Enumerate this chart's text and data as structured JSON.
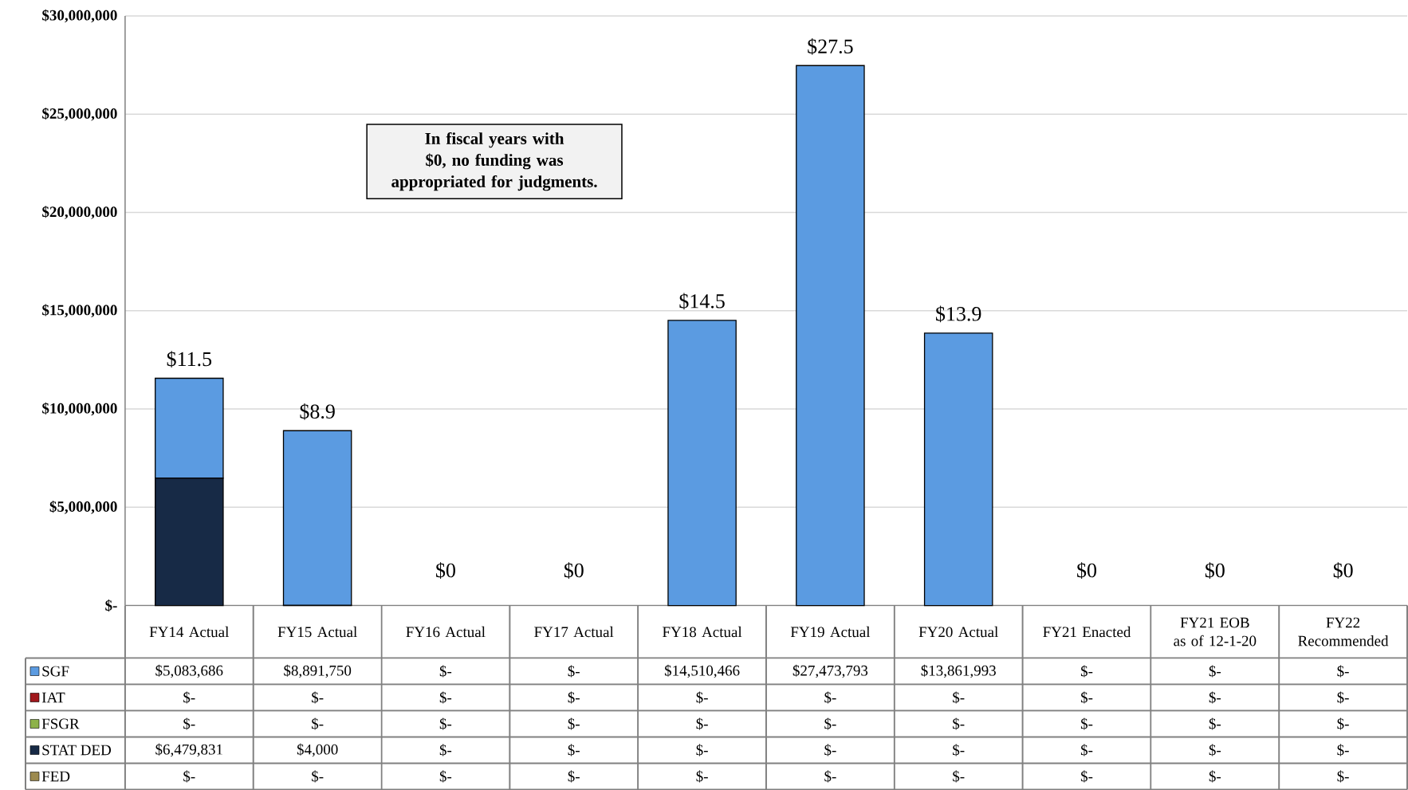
{
  "chart_data": {
    "type": "bar",
    "stacked": true,
    "categories": [
      "FY14 Actual",
      "FY15 Actual",
      "FY16 Actual",
      "FY17 Actual",
      "FY18 Actual",
      "FY19 Actual",
      "FY20 Actual",
      "FY21 Enacted",
      "FY21 EOB as of 12-1-20",
      "FY22 Recommended"
    ],
    "series": [
      {
        "name": "FED",
        "color": "#9c8a4f",
        "values": [
          0,
          0,
          0,
          0,
          0,
          0,
          0,
          0,
          0,
          0
        ],
        "value_labels": [
          "$-",
          "$-",
          "$-",
          "$-",
          "$-",
          "$-",
          "$-",
          "$-",
          "$-",
          "$-"
        ]
      },
      {
        "name": "STAT DED",
        "color": "#172a46",
        "values": [
          6479831,
          4000,
          0,
          0,
          0,
          0,
          0,
          0,
          0,
          0
        ],
        "value_labels": [
          "$6,479,831",
          "$4,000",
          "$-",
          "$-",
          "$-",
          "$-",
          "$-",
          "$-",
          "$-",
          "$-"
        ]
      },
      {
        "name": "FSGR",
        "color": "#8db24a",
        "values": [
          0,
          0,
          0,
          0,
          0,
          0,
          0,
          0,
          0,
          0
        ],
        "value_labels": [
          "$-",
          "$-",
          "$-",
          "$-",
          "$-",
          "$-",
          "$-",
          "$-",
          "$-",
          "$-"
        ]
      },
      {
        "name": "IAT",
        "color": "#a0171c",
        "values": [
          0,
          0,
          0,
          0,
          0,
          0,
          0,
          0,
          0,
          0
        ],
        "value_labels": [
          "$-",
          "$-",
          "$-",
          "$-",
          "$-",
          "$-",
          "$-",
          "$-",
          "$-",
          "$-"
        ]
      },
      {
        "name": "SGF",
        "color": "#5b9be1",
        "values": [
          5083686,
          8891750,
          0,
          0,
          14510466,
          27473793,
          13861993,
          0,
          0,
          0
        ],
        "value_labels": [
          "$5,083,686",
          "$8,891,750",
          "$-",
          "$-",
          "$14,510,466",
          "$27,473,793",
          "$13,861,993",
          "$-",
          "$-",
          "$-"
        ]
      }
    ],
    "ylim": [
      0,
      30000000
    ],
    "yticks": [
      {
        "value": 0,
        "label": "$-"
      },
      {
        "value": 5000000,
        "label": "$5,000,000"
      },
      {
        "value": 10000000,
        "label": "$10,000,000"
      },
      {
        "value": 15000000,
        "label": "$15,000,000"
      },
      {
        "value": 20000000,
        "label": "$20,000,000"
      },
      {
        "value": 25000000,
        "label": "$25,000,000"
      },
      {
        "value": 30000000,
        "label": "$30,000,000"
      }
    ],
    "grid": "y",
    "legend": "bottom",
    "annotations": [
      "In fiscal years with $0, no funding was appropriated for judgments.",
      {
        "text": "$11.5",
        "x": "FY14 Actual",
        "y": 11563517
      },
      {
        "text": "$8.9",
        "x": "FY15 Actual",
        "y": 8895750
      },
      {
        "text": "$0",
        "x": "FY16 Actual",
        "y": 0
      },
      {
        "text": "$0",
        "x": "FY17 Actual",
        "y": 0
      },
      {
        "text": "$14.5",
        "x": "FY18 Actual",
        "y": 14510466
      },
      {
        "text": "$27.5",
        "x": "FY19 Actual",
        "y": 27473793
      },
      {
        "text": "$13.9",
        "x": "FY20 Actual",
        "y": 13861993
      },
      {
        "text": "$0",
        "x": "FY21 Enacted",
        "y": 0
      },
      {
        "text": "$0",
        "x": "FY21 EOB as of 12-1-20",
        "y": 0
      },
      {
        "text": "$0",
        "x": "FY22 Recommended",
        "y": 0
      }
    ]
  }
}
